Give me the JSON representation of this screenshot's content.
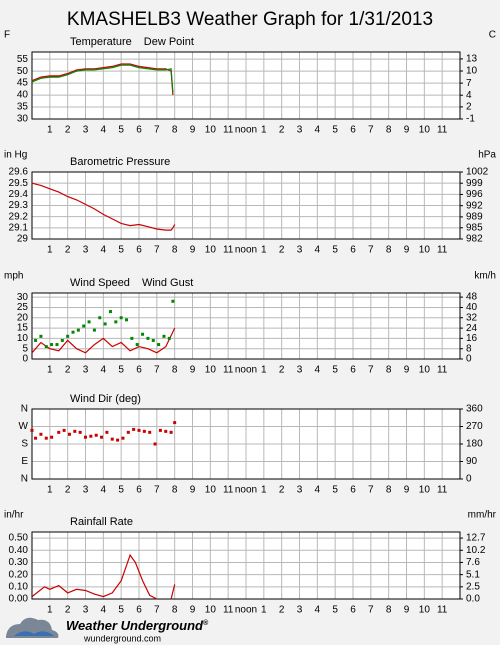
{
  "title": "KMASHELB3 Weather Graph for 1/31/2013",
  "time_axis": {
    "xlim": [
      0,
      24
    ],
    "xticks": [
      1,
      2,
      3,
      4,
      5,
      6,
      7,
      8,
      9,
      10,
      11,
      {
        "value": 12,
        "label": "noon"
      },
      {
        "value": 13,
        "label": "1"
      },
      {
        "value": 14,
        "label": "2"
      },
      {
        "value": 15,
        "label": "3"
      },
      {
        "value": 16,
        "label": "4"
      },
      {
        "value": 17,
        "label": "5"
      },
      {
        "value": 18,
        "label": "6"
      },
      {
        "value": 19,
        "label": "7"
      },
      {
        "value": 20,
        "label": "8"
      },
      {
        "value": 21,
        "label": "9"
      },
      {
        "value": 22,
        "label": "10"
      },
      {
        "value": 23,
        "label": "11"
      }
    ]
  },
  "chart_data": [
    {
      "type": "line",
      "y_label": "F",
      "y2_label": "C",
      "ylim": [
        30,
        58
      ],
      "yticks": [
        30,
        35,
        40,
        45,
        50,
        55
      ],
      "y2lim": [
        -1.1,
        14.4
      ],
      "y2ticks": [
        {
          "value": -1.1,
          "label": "-1"
        },
        {
          "value": 1.7,
          "label": "2"
        },
        {
          "value": 4.4,
          "label": "4"
        },
        {
          "value": 7.2,
          "label": "7"
        },
        {
          "value": 10,
          "label": "10"
        },
        {
          "value": 12.8,
          "label": "13"
        }
      ],
      "series": [
        {
          "name": "Temperature",
          "color": "#cc0000",
          "x": [
            0,
            0.5,
            1,
            1.5,
            2,
            2.5,
            3,
            3.5,
            4,
            4.5,
            5,
            5.5,
            6,
            6.5,
            7,
            7.5,
            7.8,
            7.9
          ],
          "values": [
            46,
            47.5,
            48,
            48,
            49,
            50.5,
            51,
            51,
            51.5,
            52,
            53,
            53,
            52,
            51.5,
            51,
            51,
            50,
            40
          ]
        },
        {
          "name": "Dew Point",
          "color": "#008800",
          "x": [
            0,
            0.5,
            1,
            1.5,
            2,
            2.5,
            3,
            3.5,
            4,
            4.5,
            5,
            5.5,
            6,
            6.5,
            7,
            7.5,
            7.8,
            7.9
          ],
          "values": [
            45.5,
            47,
            47.5,
            47.5,
            48.5,
            50,
            50.5,
            50.5,
            51,
            51.5,
            52.5,
            52.5,
            51.5,
            51,
            50.5,
            50.5,
            51,
            41
          ]
        }
      ]
    },
    {
      "type": "line",
      "y_label": "in Hg",
      "y2_label": "hPa",
      "ylim": [
        29.0,
        29.6
      ],
      "yticks": [
        29.0,
        29.1,
        29.2,
        29.3,
        29.4,
        29.5,
        29.6
      ],
      "y2lim": [
        982.1,
        1002.4
      ],
      "y2ticks": [
        {
          "value": 982.1,
          "label": "982"
        },
        {
          "value": 985.5,
          "label": "985"
        },
        {
          "value": 988.8,
          "label": "989"
        },
        {
          "value": 992.2,
          "label": "992"
        },
        {
          "value": 995.6,
          "label": "996"
        },
        {
          "value": 999.0,
          "label": "999"
        },
        {
          "value": 1002.4,
          "label": "1002"
        }
      ],
      "series": [
        {
          "name": "Barometric Pressure",
          "color": "#cc0000",
          "x": [
            0,
            0.5,
            1,
            1.5,
            2,
            2.5,
            3,
            3.5,
            4,
            4.5,
            5,
            5.5,
            6,
            6.5,
            7,
            7.5,
            7.8,
            7.9,
            8
          ],
          "values": [
            29.5,
            29.48,
            29.45,
            29.42,
            29.38,
            29.35,
            29.31,
            29.27,
            29.22,
            29.18,
            29.14,
            29.12,
            29.13,
            29.11,
            29.09,
            29.08,
            29.08,
            29.1,
            29.13
          ]
        }
      ]
    },
    {
      "type": "line",
      "y_label": "mph",
      "y2_label": "km/h",
      "ylim": [
        0,
        32
      ],
      "yticks": [
        0,
        5,
        10,
        15,
        20,
        25,
        30
      ],
      "y2lim": [
        0,
        51.5
      ],
      "y2ticks": [
        0,
        {
          "value": 8.0,
          "label": "8"
        },
        {
          "value": 16.1,
          "label": "16"
        },
        {
          "value": 24.1,
          "label": "24"
        },
        {
          "value": 32.2,
          "label": "32"
        },
        {
          "value": 40.2,
          "label": "40"
        },
        {
          "value": 48.3,
          "label": "48"
        }
      ],
      "series": [
        {
          "name": "Wind Speed",
          "color": "#cc0000",
          "x": [
            0,
            0.5,
            1,
            1.5,
            2,
            2.5,
            3,
            3.5,
            4,
            4.5,
            5,
            5.5,
            6,
            6.5,
            7,
            7.5,
            8
          ],
          "values": [
            3,
            8,
            5,
            4,
            9,
            5,
            3,
            7,
            10,
            6,
            8,
            4,
            6,
            5,
            3,
            6,
            15
          ]
        },
        {
          "name": "Wind Gust",
          "color": "#008800",
          "type": "scatter",
          "x": [
            0.2,
            0.5,
            0.8,
            1.1,
            1.4,
            1.7,
            2.0,
            2.3,
            2.6,
            2.9,
            3.2,
            3.5,
            3.8,
            4.1,
            4.4,
            4.7,
            5.0,
            5.3,
            5.6,
            5.9,
            6.2,
            6.5,
            6.8,
            7.1,
            7.4,
            7.7,
            7.9
          ],
          "values": [
            9,
            11,
            6,
            7,
            7,
            9,
            11,
            13,
            14,
            16,
            18,
            14,
            20,
            17,
            23,
            18,
            20,
            19,
            10,
            7,
            12,
            10,
            9,
            7,
            11,
            10,
            28
          ]
        }
      ]
    },
    {
      "type": "scatter",
      "ylim": [
        0,
        360
      ],
      "yticks": [
        {
          "value": 0,
          "label": "N"
        },
        {
          "value": 90,
          "label": "E"
        },
        {
          "value": 180,
          "label": "S"
        },
        {
          "value": 270,
          "label": "W"
        },
        {
          "value": 360,
          "label": "N"
        }
      ],
      "y2lim": [
        0,
        360
      ],
      "y2ticks": [
        0,
        90,
        180,
        270,
        360
      ],
      "series": [
        {
          "name": "Wind Dir (deg)",
          "color": "#cc0000",
          "x": [
            0,
            0.2,
            0.5,
            0.8,
            1.1,
            1.5,
            1.8,
            2.1,
            2.4,
            2.7,
            3,
            3.3,
            3.6,
            3.9,
            4.2,
            4.5,
            4.8,
            5.1,
            5.4,
            5.7,
            6,
            6.3,
            6.6,
            6.9,
            7.2,
            7.5,
            7.8,
            8
          ],
          "values": [
            250,
            210,
            230,
            210,
            215,
            240,
            250,
            230,
            245,
            240,
            215,
            220,
            225,
            215,
            240,
            205,
            200,
            210,
            240,
            255,
            250,
            245,
            240,
            180,
            250,
            245,
            240,
            290
          ]
        }
      ]
    },
    {
      "type": "line",
      "y_label": "in/hr",
      "y2_label": "mm/hr",
      "ylim": [
        0,
        0.55
      ],
      "yticks": [
        {
          "value": 0,
          "label": "0.00"
        },
        {
          "value": 0.1,
          "label": "0.10"
        },
        {
          "value": 0.2,
          "label": "0.20"
        },
        {
          "value": 0.3,
          "label": "0.30"
        },
        {
          "value": 0.4,
          "label": "0.40"
        },
        {
          "value": 0.5,
          "label": "0.50"
        }
      ],
      "y2lim": [
        0,
        13.97
      ],
      "y2ticks": [
        {
          "value": 0,
          "label": "0.0"
        },
        {
          "value": 2.54,
          "label": "2.5"
        },
        {
          "value": 5.08,
          "label": "5.1"
        },
        {
          "value": 7.62,
          "label": "7.6"
        },
        {
          "value": 10.16,
          "label": "10.2"
        },
        {
          "value": 12.7,
          "label": "12.7"
        }
      ],
      "series": [
        {
          "name": "Rainfall Rate",
          "color": "#cc0000",
          "x": [
            0,
            0.7,
            1,
            1.5,
            2,
            2.5,
            3,
            3.5,
            4,
            4.5,
            5,
            5.5,
            5.8,
            6.2,
            6.6,
            7,
            7.2,
            7.8,
            8
          ],
          "values": [
            0.02,
            0.1,
            0.08,
            0.11,
            0.05,
            0.08,
            0.07,
            0.04,
            0.02,
            0.05,
            0.15,
            0.36,
            0.3,
            0.15,
            0.03,
            0.0,
            null,
            0.0,
            0.12
          ]
        }
      ]
    }
  ],
  "footer": {
    "brand": "Weather Underground",
    "mark": "®",
    "url": "wunderground.com"
  }
}
